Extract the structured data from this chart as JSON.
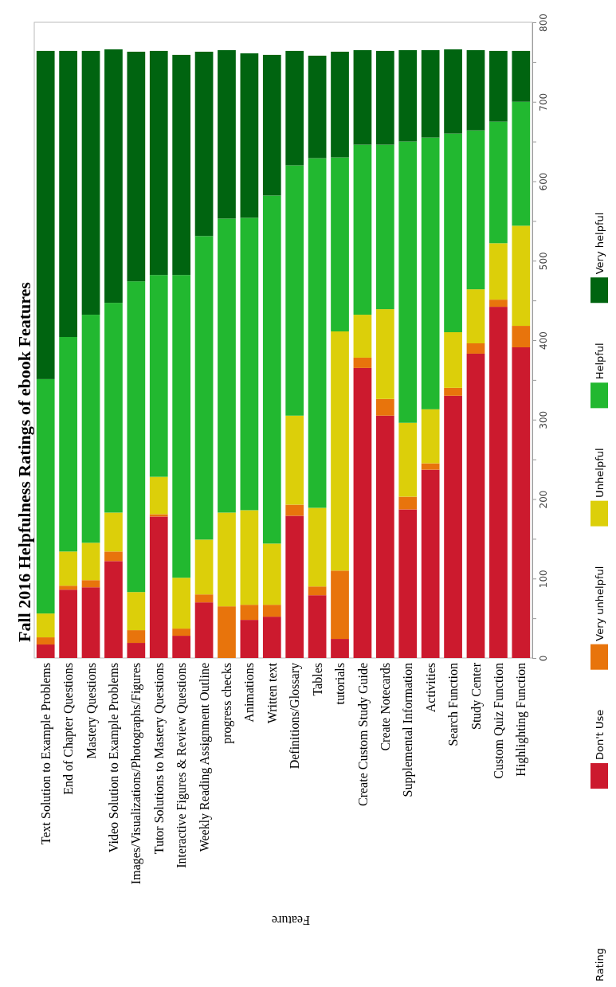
{
  "chart_data": {
    "type": "bar",
    "stacked": true,
    "title": "Fall 2016 Helpfulness Ratings of ebook Features",
    "xlabel": "Feature",
    "legend_title": "Rating",
    "legend": "right",
    "categories": [
      "Text Solution to Example Problems",
      "End of Chapter Questions",
      "Mastery Questions",
      "Video Solution to Example Problems",
      "Images/Visualizations/Photographs/Figures",
      "Tutor Solutions to Mastery Questions",
      "Interactive Figures & Review Questions",
      "Weekly Reading Assignment Outline",
      "progress checks",
      "Animations",
      "Written text",
      "Definitions/Glossary",
      "Tables",
      "tutorials",
      "Create Custom Study Guide",
      "Create Notecards",
      "Supplemental Information",
      "Activities",
      "Search Function",
      "Study Center",
      "Custom Quiz Function",
      "Highlighting Function"
    ],
    "ylim": [
      0,
      800
    ],
    "yticks": [
      0,
      {
        "value": 50,
        "label": null
      },
      100,
      {
        "value": 150,
        "label": null
      },
      200,
      {
        "value": 250,
        "label": null
      },
      300,
      {
        "value": 350,
        "label": null
      },
      400,
      {
        "value": 450,
        "label": null
      },
      500,
      {
        "value": 550,
        "label": null
      },
      600,
      {
        "value": 650,
        "label": null
      },
      700,
      {
        "value": 750,
        "label": null
      },
      800
    ],
    "series": [
      {
        "name": "Don't Use",
        "color": "#cc1a2e",
        "values": [
          17,
          86,
          89,
          122,
          19,
          178,
          28,
          70,
          0,
          48,
          52,
          179,
          79,
          24,
          365,
          305,
          187,
          237,
          330,
          383,
          442,
          391
        ]
      },
      {
        "name": "Very unhelpful",
        "color": "#e8740c",
        "values": [
          9,
          5,
          9,
          12,
          16,
          3,
          9,
          10,
          65,
          19,
          15,
          14,
          11,
          86,
          13,
          21,
          16,
          8,
          10,
          13,
          9,
          27
        ]
      },
      {
        "name": "Unhelpful",
        "color": "#dccf0a",
        "values": [
          30,
          43,
          47,
          49,
          48,
          47,
          64,
          69,
          118,
          119,
          77,
          112,
          99,
          301,
          54,
          113,
          93,
          68,
          70,
          68,
          71,
          126
        ]
      },
      {
        "name": "Helpful",
        "color": "#22b830",
        "values": [
          295,
          270,
          287,
          264,
          391,
          254,
          381,
          382,
          370,
          368,
          438,
          315,
          440,
          219,
          214,
          207,
          354,
          342,
          250,
          200,
          153,
          156
        ]
      },
      {
        "name": "Very helpful",
        "color": "#006410",
        "values": [
          413,
          360,
          332,
          319,
          289,
          282,
          277,
          232,
          212,
          207,
          177,
          144,
          129,
          133,
          119,
          118,
          115,
          110,
          106,
          101,
          89,
          64
        ]
      }
    ]
  }
}
